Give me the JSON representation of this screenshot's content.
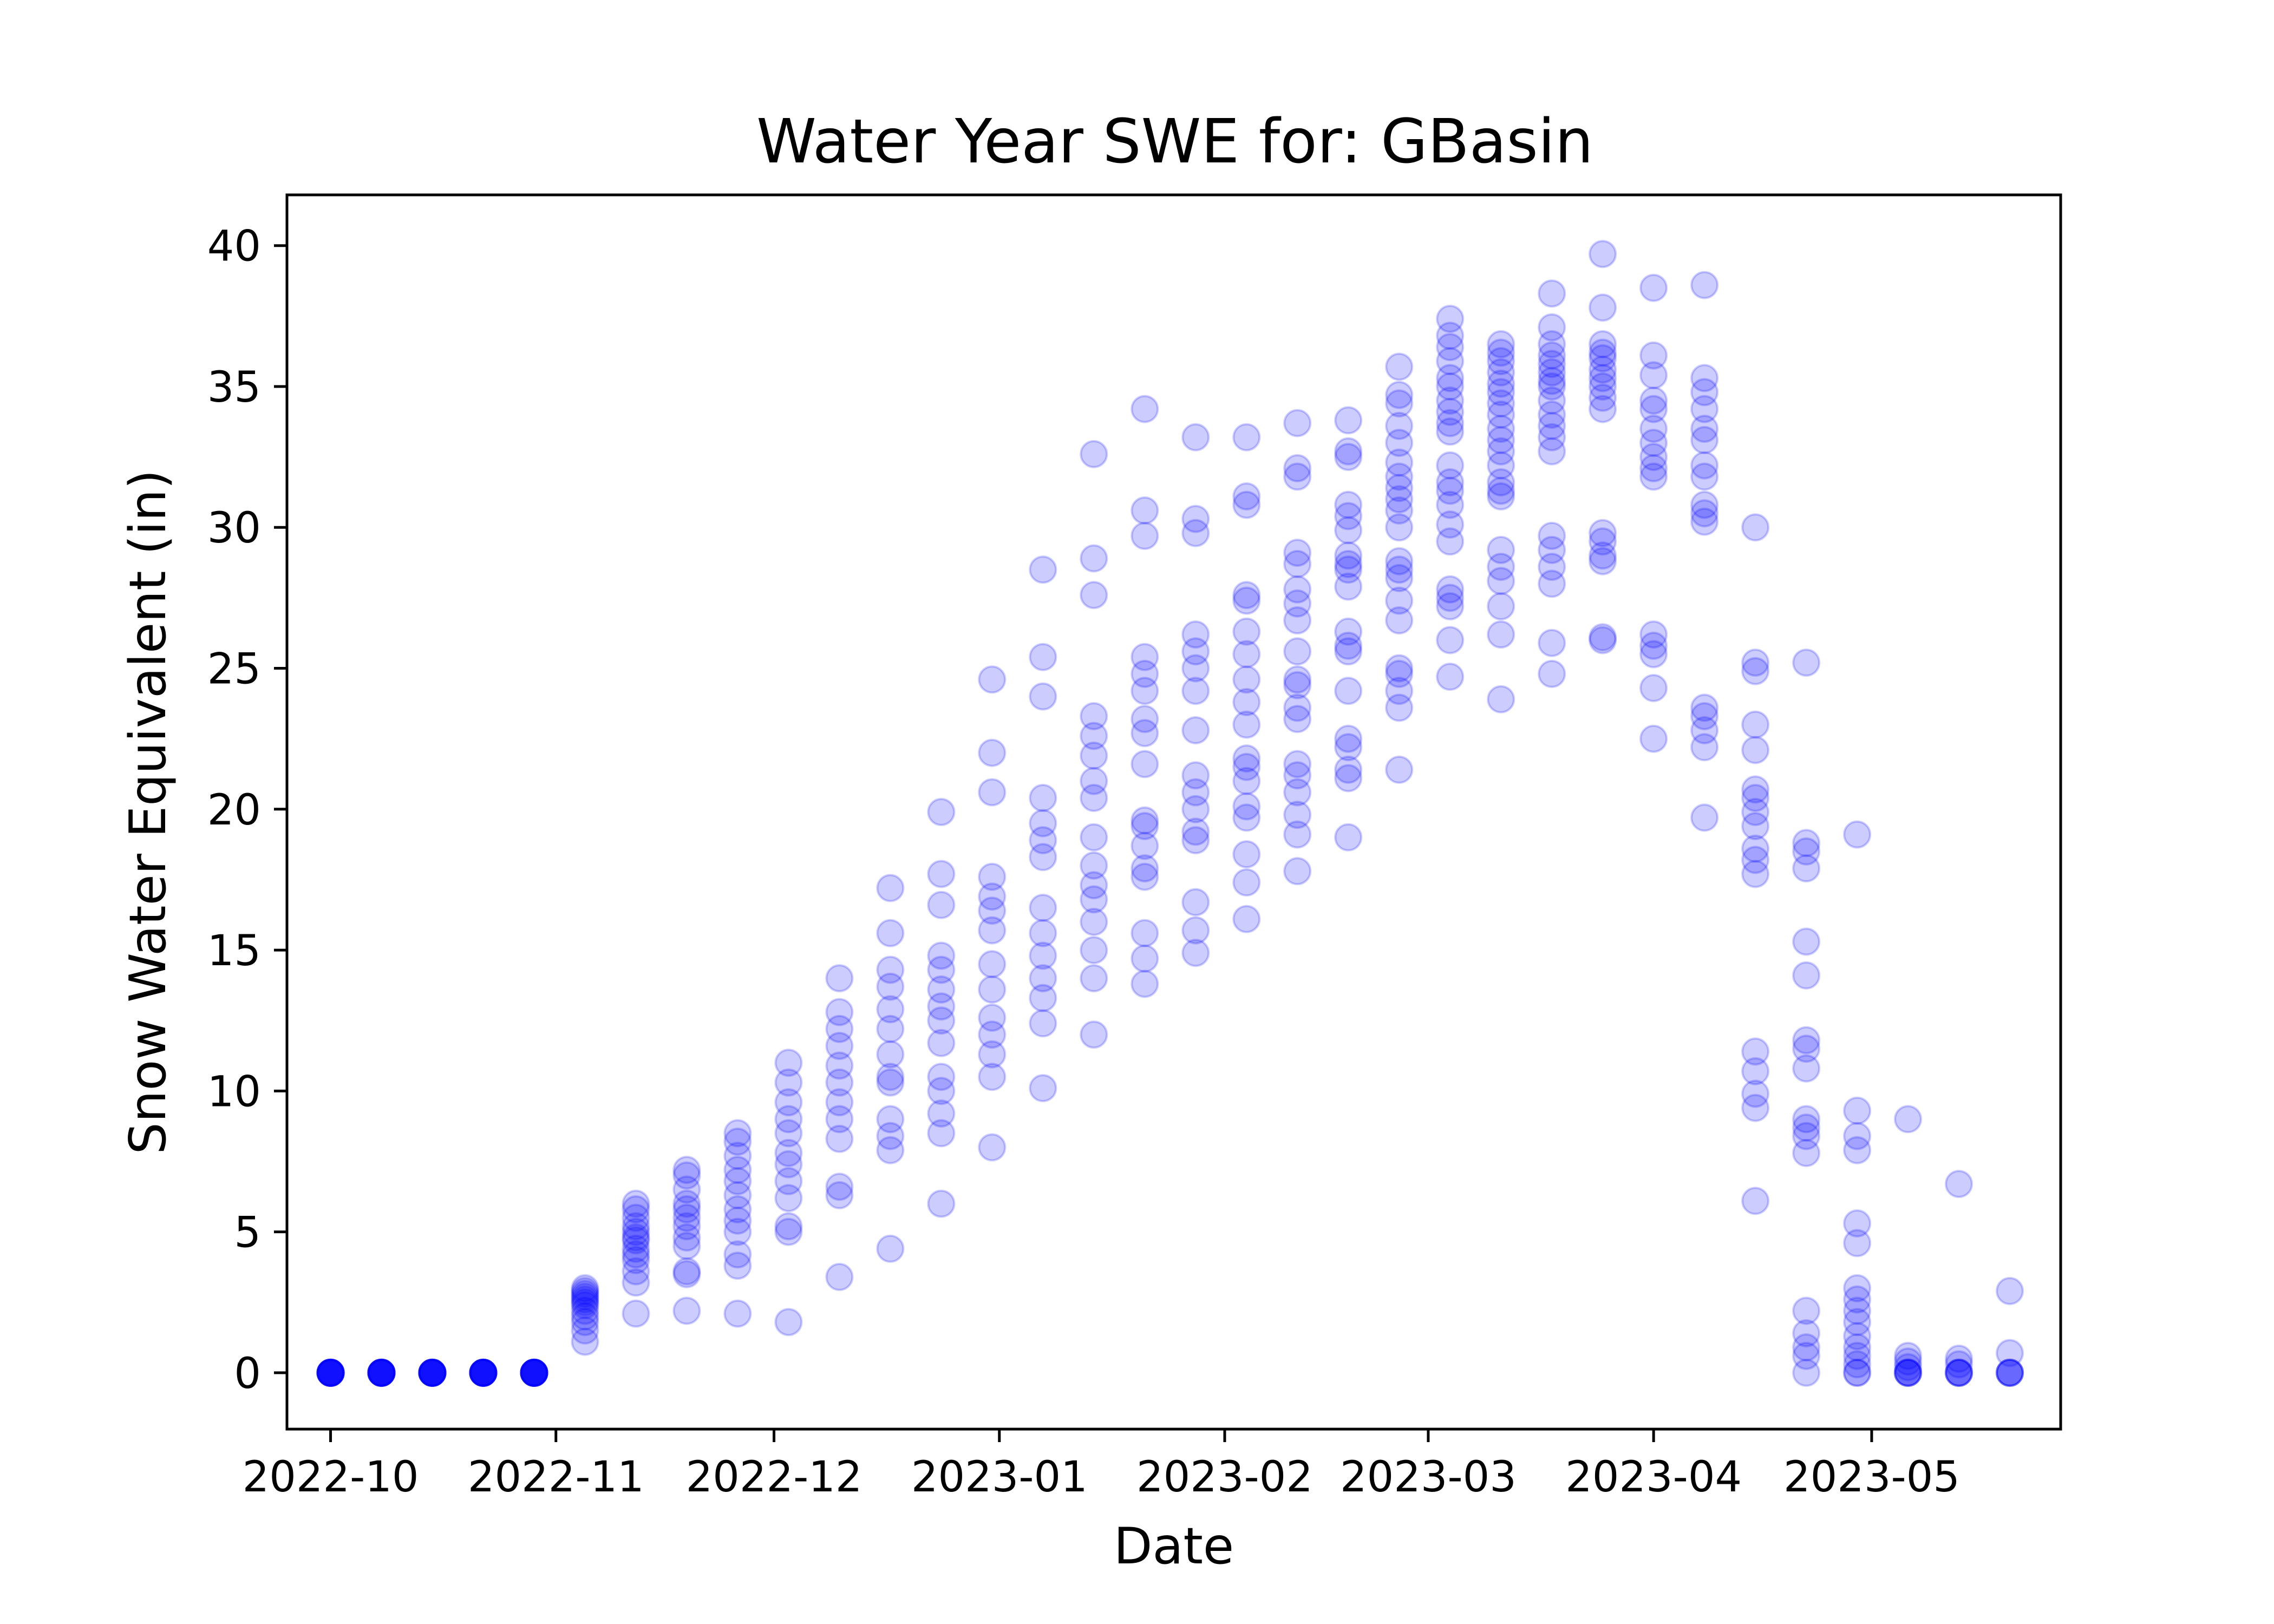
{
  "chart_data": {
    "type": "scatter",
    "title": "Water Year SWE for: GBasin",
    "xlabel": "Date",
    "ylabel": "Snow Water Equivalent (in)",
    "x_ticks": [
      "2022-10",
      "2022-11",
      "2022-12",
      "2023-01",
      "2023-02",
      "2023-03",
      "2023-04",
      "2023-05"
    ],
    "y_ticks": [
      "0",
      "5",
      "10",
      "15",
      "20",
      "25",
      "30",
      "35",
      "40"
    ],
    "xlim": [
      "2022-09-25",
      "2023-05-27"
    ],
    "ylim": [
      -2,
      41.8
    ],
    "marker_color": "#0000ff",
    "marker_alpha": 0.2,
    "grid": false,
    "legend": "none",
    "series": [
      {
        "points": [
          {
            "date": "2022-10-01",
            "values": [
              0,
              0,
              0,
              0,
              0,
              0,
              0,
              0,
              0,
              0,
              0,
              0
            ]
          },
          {
            "date": "2022-10-08",
            "values": [
              0,
              0,
              0,
              0,
              0,
              0,
              0,
              0,
              0,
              0,
              0,
              0
            ]
          },
          {
            "date": "2022-10-15",
            "values": [
              0,
              0,
              0,
              0,
              0,
              0,
              0,
              0,
              0,
              0,
              0,
              0
            ]
          },
          {
            "date": "2022-10-22",
            "values": [
              0,
              0,
              0,
              0,
              0,
              0,
              0,
              0,
              0,
              0,
              0,
              0
            ]
          },
          {
            "date": "2022-10-29",
            "values": [
              0,
              0,
              0,
              0,
              0,
              0,
              0,
              0,
              0,
              0,
              0,
              0
            ]
          },
          {
            "date": "2022-11-05",
            "values": [
              1.1,
              1.5,
              1.8,
              2.0,
              2.2,
              2.4,
              2.5,
              2.6,
              2.7,
              2.8,
              2.9,
              3.0
            ]
          },
          {
            "date": "2022-11-12",
            "values": [
              2.1,
              3.2,
              3.6,
              4.0,
              4.4,
              4.7,
              5.0,
              5.2,
              5.5,
              5.8,
              6.0,
              4.8,
              4.2
            ]
          },
          {
            "date": "2022-11-19",
            "values": [
              2.2,
              3.5,
              3.6,
              4.5,
              4.8,
              5.2,
              5.5,
              5.8,
              6.0,
              6.5,
              7.0,
              7.2
            ]
          },
          {
            "date": "2022-11-26",
            "values": [
              2.1,
              3.8,
              4.2,
              5.0,
              5.4,
              5.8,
              6.3,
              6.8,
              7.2,
              7.7,
              8.2,
              8.5
            ]
          },
          {
            "date": "2022-12-03",
            "values": [
              1.8,
              5.0,
              5.2,
              6.2,
              6.8,
              7.4,
              7.8,
              8.5,
              9.0,
              9.6,
              10.3,
              11.0
            ]
          },
          {
            "date": "2022-12-10",
            "values": [
              3.4,
              6.3,
              6.6,
              8.3,
              9.0,
              9.6,
              10.3,
              10.9,
              11.6,
              12.2,
              12.8,
              14.0
            ]
          },
          {
            "date": "2022-12-17",
            "values": [
              4.4,
              7.9,
              8.4,
              9.0,
              10.3,
              10.5,
              11.3,
              12.2,
              12.9,
              13.7,
              14.3,
              15.6,
              17.2
            ]
          },
          {
            "date": "2022-12-24",
            "values": [
              6.0,
              8.5,
              9.2,
              10.0,
              10.5,
              11.7,
              12.5,
              13.0,
              13.6,
              14.3,
              14.8,
              16.6,
              17.7,
              19.9
            ]
          },
          {
            "date": "2022-12-31",
            "values": [
              8.0,
              10.5,
              11.3,
              12.0,
              12.6,
              13.6,
              14.5,
              15.7,
              16.4,
              16.9,
              17.6,
              20.6,
              22.0,
              24.6
            ]
          },
          {
            "date": "2023-01-07",
            "values": [
              10.1,
              12.4,
              13.3,
              14.0,
              14.8,
              15.6,
              16.5,
              18.3,
              18.9,
              19.5,
              20.4,
              24.0,
              25.4,
              28.5
            ]
          },
          {
            "date": "2023-01-14",
            "values": [
              12.0,
              14.0,
              15.0,
              16.0,
              16.8,
              17.3,
              18.0,
              19.0,
              20.4,
              21.0,
              21.9,
              22.6,
              23.3,
              27.6,
              28.9,
              32.6
            ]
          },
          {
            "date": "2023-01-21",
            "values": [
              13.8,
              14.7,
              15.6,
              17.6,
              17.9,
              18.7,
              19.4,
              19.6,
              21.6,
              22.7,
              23.2,
              24.2,
              24.8,
              25.4,
              29.7,
              30.6,
              34.2
            ]
          },
          {
            "date": "2023-01-28",
            "values": [
              14.9,
              15.7,
              16.7,
              18.9,
              19.2,
              20.0,
              20.6,
              21.2,
              22.8,
              24.2,
              25.0,
              25.6,
              26.2,
              29.8,
              30.3,
              33.2
            ]
          },
          {
            "date": "2023-02-04",
            "values": [
              16.1,
              17.4,
              18.4,
              19.7,
              20.1,
              21.0,
              21.5,
              21.8,
              23.0,
              23.8,
              24.6,
              25.5,
              26.3,
              27.4,
              27.6,
              30.8,
              31.1,
              33.2
            ]
          },
          {
            "date": "2023-02-11",
            "values": [
              17.8,
              19.1,
              19.8,
              20.6,
              21.2,
              21.6,
              23.2,
              23.6,
              24.4,
              24.6,
              25.6,
              26.7,
              27.3,
              27.8,
              28.7,
              29.1,
              31.8,
              32.1,
              33.7
            ]
          },
          {
            "date": "2023-02-18",
            "values": [
              19.0,
              21.1,
              21.4,
              22.2,
              22.5,
              24.2,
              25.6,
              25.8,
              26.3,
              27.9,
              28.5,
              28.7,
              29.0,
              29.9,
              30.4,
              30.8,
              32.5,
              32.7,
              33.8
            ]
          },
          {
            "date": "2023-02-25",
            "values": [
              21.4,
              23.6,
              24.2,
              24.8,
              25.0,
              26.7,
              27.4,
              28.2,
              28.5,
              28.8,
              30.0,
              30.6,
              31.0,
              31.4,
              31.8,
              32.3,
              33.0,
              33.6,
              34.4,
              34.7,
              35.7
            ]
          },
          {
            "date": "2023-03-04",
            "values": [
              24.7,
              26.0,
              27.2,
              27.5,
              27.8,
              29.5,
              30.1,
              30.8,
              31.3,
              31.6,
              32.2,
              33.4,
              33.7,
              34.1,
              34.5,
              35.0,
              35.3,
              35.9,
              36.4,
              36.8,
              37.4
            ]
          },
          {
            "date": "2023-03-11",
            "values": [
              23.9,
              26.2,
              27.2,
              28.1,
              28.6,
              29.2,
              31.1,
              31.3,
              31.6,
              32.2,
              32.7,
              33.1,
              33.5,
              34.0,
              34.4,
              34.8,
              35.1,
              35.5,
              35.9,
              36.2,
              36.5
            ]
          },
          {
            "date": "2023-03-18",
            "values": [
              24.8,
              25.9,
              28.0,
              28.6,
              29.2,
              29.7,
              32.7,
              33.2,
              33.6,
              34.0,
              34.5,
              35.0,
              35.2,
              35.5,
              35.8,
              36.1,
              36.5,
              37.1,
              38.3
            ]
          },
          {
            "date": "2023-03-25",
            "values": [
              26.0,
              26.1,
              28.8,
              29.0,
              29.5,
              29.8,
              34.2,
              34.6,
              35.0,
              35.3,
              35.6,
              36.0,
              36.2,
              36.5,
              37.8,
              39.7
            ]
          },
          {
            "date": "2023-04-01",
            "values": [
              22.5,
              24.3,
              25.5,
              25.8,
              26.2,
              31.8,
              32.1,
              32.5,
              33.0,
              33.5,
              34.2,
              34.5,
              35.4,
              36.1,
              38.5
            ]
          },
          {
            "date": "2023-04-08",
            "values": [
              19.7,
              22.2,
              22.8,
              23.3,
              23.6,
              30.2,
              30.5,
              30.8,
              31.8,
              32.2,
              33.1,
              33.5,
              34.2,
              34.8,
              35.3,
              38.6
            ]
          },
          {
            "date": "2023-04-15",
            "values": [
              6.1,
              9.4,
              9.9,
              10.7,
              11.4,
              17.7,
              18.2,
              18.6,
              19.4,
              19.9,
              20.4,
              20.7,
              22.1,
              23.0,
              24.9,
              25.2,
              30.0
            ]
          },
          {
            "date": "2023-04-22",
            "values": [
              0,
              0.6,
              0.9,
              1.4,
              2.2,
              7.8,
              8.4,
              8.7,
              9.0,
              10.8,
              11.5,
              11.8,
              14.1,
              15.3,
              17.9,
              18.5,
              18.8,
              25.2
            ]
          },
          {
            "date": "2023-04-29",
            "values": [
              0,
              0,
              0.3,
              0.6,
              0.9,
              1.3,
              1.8,
              2.2,
              2.6,
              3.0,
              4.6,
              5.3,
              7.9,
              8.4,
              9.3,
              19.1
            ]
          },
          {
            "date": "2023-05-06",
            "values": [
              0,
              0,
              0,
              0,
              0.2,
              0.4,
              0.6,
              9.0
            ]
          },
          {
            "date": "2023-05-13",
            "values": [
              0,
              0,
              0,
              0,
              0.3,
              0.5,
              6.7
            ]
          },
          {
            "date": "2023-05-20",
            "values": [
              0,
              0,
              0,
              0,
              0.7,
              2.9
            ]
          }
        ]
      }
    ]
  }
}
